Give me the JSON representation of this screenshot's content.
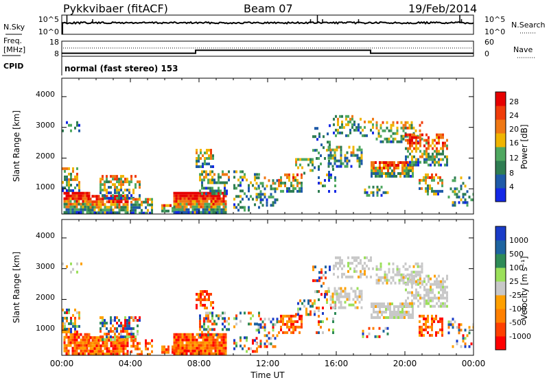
{
  "header": {
    "station": "Pykkvibaer (fitACF)",
    "beam": "Beam 07",
    "date": "19/Feb/2014"
  },
  "left_labels": {
    "nsky": "N.Sky",
    "freq_line1": "Freq.",
    "freq_line2": "[MHz]",
    "cpid": "CPID"
  },
  "right_labels": {
    "nsearch": "N.Search",
    "nave": "Nave"
  },
  "cpid_text": "normal (fast stereo) 153",
  "colors": {
    "power_scale": [
      "#1428e6",
      "#1e5aa8",
      "#2e7d52",
      "#4fa860",
      "#f0b400",
      "#f07814",
      "#f03c0a",
      "#e60000"
    ],
    "velocity_scale": [
      "#ff0000",
      "#ff4000",
      "#ff8000",
      "#ffa000",
      "#c8c8c8",
      "#9be05a",
      "#2e8b57",
      "#1e64a0",
      "#1a3cc8"
    ]
  },
  "chart_data": [
    {
      "type": "line",
      "name": "noise-panel",
      "left_ticks": [
        "10^5",
        "10^0"
      ],
      "right_ticks": [
        "10^5",
        "10^0"
      ],
      "xlim": [
        "00:00",
        "24:00"
      ]
    },
    {
      "type": "line",
      "name": "frequency-panel",
      "left_ticks": [
        "18",
        "8"
      ],
      "right_ticks": [
        "60",
        "0"
      ],
      "x": [
        0.0,
        7.8,
        7.8,
        18.0,
        18.0,
        24.0
      ],
      "freq_mhz": [
        10.0,
        10.0,
        12.0,
        12.0,
        10.0,
        10.0
      ]
    },
    {
      "type": "heatmap",
      "name": "power",
      "xlabel": "",
      "ylabel": "Slant Range [km]",
      "xlim": [
        "00:00",
        "24:00"
      ],
      "ylim": [
        180,
        4600
      ],
      "yticks": [
        1000,
        2000,
        3000,
        4000
      ],
      "xticks": [
        "00:00",
        "04:00",
        "08:00",
        "12:00",
        "16:00",
        "20:00",
        "00:00"
      ],
      "colorbar_label": "Power [dB]",
      "colorbar_ticks": [
        "28",
        "24",
        "20",
        "16",
        "12",
        "8",
        "4"
      ]
    },
    {
      "type": "heatmap",
      "name": "velocity",
      "xlabel": "Time UT",
      "ylabel": "Slant Range [km]",
      "xlim": [
        "00:00",
        "24:00"
      ],
      "ylim": [
        180,
        4600
      ],
      "yticks": [
        1000,
        2000,
        3000,
        4000
      ],
      "xticks": [
        "00:00",
        "04:00",
        "08:00",
        "12:00",
        "16:00",
        "20:00",
        "00:00"
      ],
      "colorbar_label": "Velocity [m s⁻¹]",
      "colorbar_ticks": [
        "1000",
        "500",
        "100",
        "25",
        "-25",
        "-100",
        "-500",
        "-1000"
      ]
    }
  ]
}
